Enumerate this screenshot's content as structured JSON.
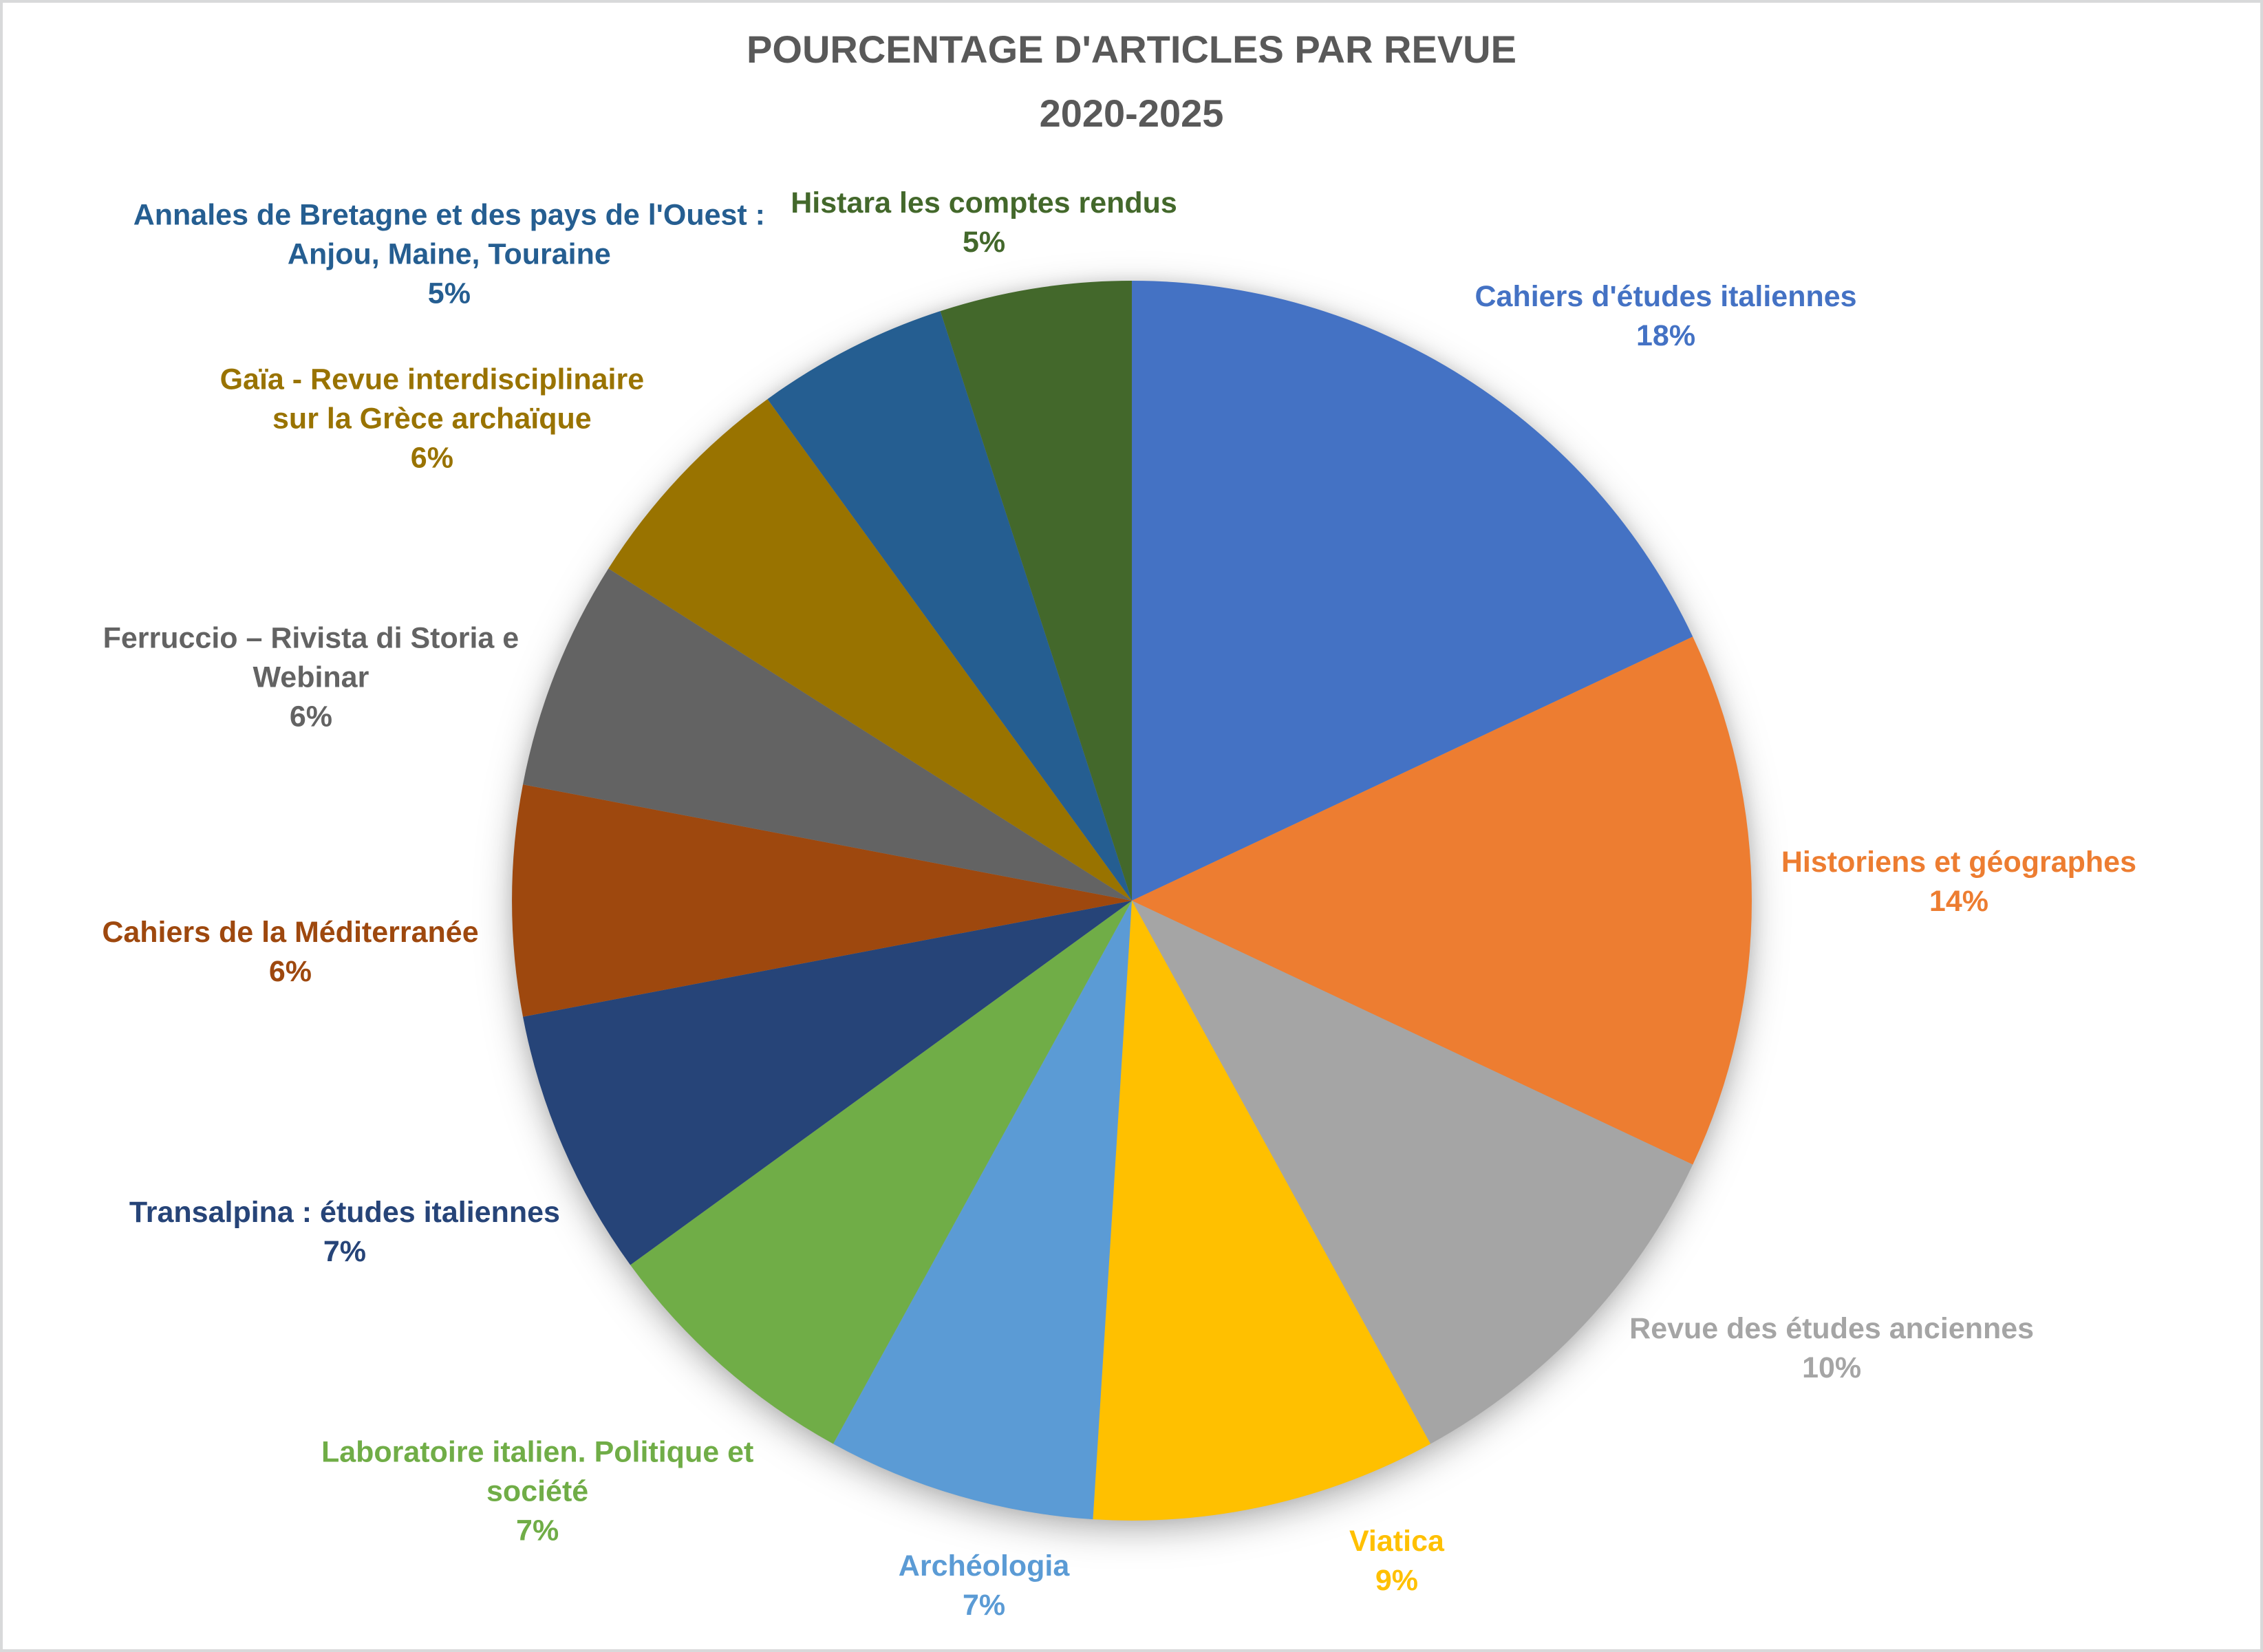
{
  "title": {
    "line1": "POURCENTAGE D'ARTICLES PAR REVUE",
    "line2": "2020-2025",
    "color": "#595959"
  },
  "chart_data": {
    "type": "pie",
    "title": "POURCENTAGE D'ARTICLES PAR REVUE 2020-2025",
    "unit": "%",
    "total": 100,
    "start_angle_deg": 0,
    "direction": "clockwise",
    "legend": "none",
    "labels_show": "name+percent",
    "slices": [
      {
        "name": "Cahiers d'études italiennes",
        "value": 18,
        "color": "#4472C4",
        "label_lines": [
          "Cahiers d'études italiennes",
          "18%"
        ]
      },
      {
        "name": "Historiens et géographes",
        "value": 14,
        "color": "#ED7D31",
        "label_lines": [
          "Historiens et géographes",
          "14%"
        ]
      },
      {
        "name": "Revue des études anciennes",
        "value": 10,
        "color": "#A5A5A5",
        "label_lines": [
          "Revue des études anciennes",
          "10%"
        ]
      },
      {
        "name": "Viatica",
        "value": 9,
        "color": "#FFC000",
        "label_lines": [
          "Viatica",
          "9%"
        ]
      },
      {
        "name": "Archéologia",
        "value": 7,
        "color": "#5B9BD5",
        "label_lines": [
          "Archéologia",
          "7%"
        ]
      },
      {
        "name": "Laboratoire italien. Politique et société",
        "value": 7,
        "color": "#70AD47",
        "label_lines": [
          "Laboratoire italien. Politique et",
          "société",
          "7%"
        ]
      },
      {
        "name": "Transalpina : études italiennes",
        "value": 7,
        "color": "#264478",
        "label_lines": [
          "Transalpina : études italiennes",
          "7%"
        ]
      },
      {
        "name": "Cahiers de la Méditerranée",
        "value": 6,
        "color": "#9E480E",
        "label_lines": [
          "Cahiers de la Méditerranée",
          "6%"
        ]
      },
      {
        "name": "Ferruccio – Rivista di Storia e Webinar",
        "value": 6,
        "color": "#636363",
        "label_lines": [
          "Ferruccio – Rivista di Storia e",
          "Webinar",
          "6%"
        ]
      },
      {
        "name": "Gaïa - Revue interdisciplinaire sur la Grèce archaïque",
        "value": 6,
        "color": "#997300",
        "label_lines": [
          "Gaïa - Revue interdisciplinaire",
          "sur la Grèce archaïque",
          "6%"
        ]
      },
      {
        "name": "Annales de Bretagne et des pays de l'Ouest : Anjou, Maine, Touraine",
        "value": 5,
        "color": "#255E91",
        "label_lines": [
          "Annales de Bretagne et des pays de l'Ouest :",
          "Anjou, Maine, Touraine",
          "5%"
        ]
      },
      {
        "name": "Histara les comptes rendus",
        "value": 5,
        "color": "#43682B",
        "label_lines": [
          "Histara les comptes rendus",
          "5%"
        ]
      }
    ]
  }
}
